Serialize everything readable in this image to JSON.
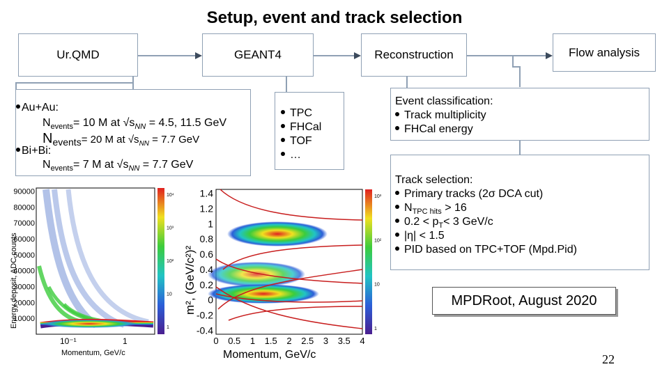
{
  "title": "Setup, event and track selection",
  "flow": {
    "box1": "Ur.QMD",
    "box2": "GEANT4",
    "box3": "Reconstruction",
    "box4": "Flow analysis"
  },
  "events": {
    "auau_label": "Au+Au:",
    "auau_n": "N",
    "auau_sub": "events",
    "auau_rest": "= 10 M at √s",
    "auau_nn": "NN",
    "auau_energy": " = 4.5, 11.5 GeV",
    "auau2_n": "N",
    "auau2_sub": "events",
    "auau2_rest": "= 20 M at √s",
    "auau2_nn": "NN",
    "auau2_energy": " = 7.7 GeV",
    "bibi_label": "Bi+Bi:",
    "bibi_n": "N",
    "bibi_sub": "events",
    "bibi_rest": "= 7 M at √s",
    "bibi_nn": "NN",
    "bibi_energy": " = 7.7 GeV"
  },
  "detectors": [
    "TPC",
    "FHCal",
    "TOF",
    "…"
  ],
  "event_classification": {
    "heading": "Event classification:",
    "items": [
      "Track multiplicity",
      "FHCal energy"
    ]
  },
  "track_selection": {
    "heading": "Track selection:",
    "item1": "Primary tracks (2σ DCA cut)",
    "item2_n": "N",
    "item2_sub": "TPC hits",
    "item2_rest": " > 16",
    "item3_a": "0.2 < p",
    "item3_sub": "T",
    "item3_b": "< 3 GeV/c",
    "item4": "|η| < 1.5",
    "item5": "PID based on TPC+TOF (Mpd.Pid)"
  },
  "footer": "MPDRoot, August 2020",
  "page_number": "22",
  "colors": {
    "box_border": "#8fa0b4",
    "arrow": "#3c4a5c",
    "band": "#c81e1e"
  },
  "chart_data": [
    {
      "type": "heatmap",
      "xlabel": "Momentum, GeV/c",
      "ylabel": "Energy deposit, ADC counts",
      "x_scale": "log",
      "x_ticks": [
        "10⁻¹",
        "1"
      ],
      "y_ticks": [
        "90000",
        "80000",
        "70000",
        "60000",
        "50000",
        "40000",
        "30000",
        "20000",
        "10000"
      ],
      "xlim": [
        0.05,
        3
      ],
      "ylim": [
        0,
        92000
      ],
      "z_ticks": [
        "10⁴",
        "10³",
        "10²",
        "10",
        "1"
      ]
    },
    {
      "type": "heatmap",
      "xlabel": "Momentum, GeV/c",
      "ylabel": "m², (GeV/c²)²",
      "x_ticks": [
        "0",
        "0.5",
        "1",
        "1.5",
        "2",
        "2.5",
        "3",
        "3.5",
        "4"
      ],
      "y_ticks": [
        "1.4",
        "1.2",
        "1",
        "0.8",
        "0.6",
        "0.4",
        "0.2",
        "0",
        "-0.2",
        "-0.4"
      ],
      "xlim": [
        0,
        4
      ],
      "ylim": [
        -0.45,
        1.45
      ],
      "z_ticks": [
        "10³",
        "10²",
        "10",
        "1"
      ]
    }
  ]
}
